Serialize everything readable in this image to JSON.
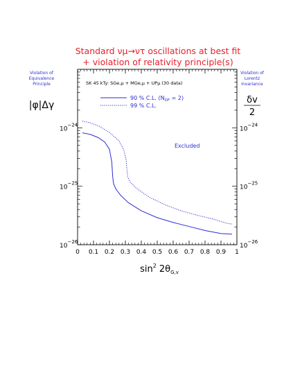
{
  "title": {
    "line1": "Standard νμ→ντ oscillations at best fit",
    "line2": "+ violation of relativity principle(s)"
  },
  "side_notes": {
    "left": [
      "Violation of",
      "Equivalence",
      "Principle"
    ],
    "right": [
      "Violation of",
      "Lorentz",
      "Invariance"
    ]
  },
  "left_symbol": "|φ|Δγ",
  "right_symbol": {
    "numerator": "δv",
    "denominator": "2"
  },
  "annotation": "SK 45 kTy:  SGe,μ + MGe,μ + UPμ  (30 data)",
  "region_label": "Excluded",
  "colors": {
    "curve": "#2b2bd4",
    "title": "#e8202a",
    "notes": "#2b2bd4"
  },
  "chart_data": {
    "type": "line",
    "title": "Standard νμ→ντ oscillations at best fit + violation of relativity principle(s)",
    "xlabel": "sin² 2θG,v",
    "ylabel": "|φ|Δγ",
    "ylabel_right": "δv/2",
    "xlim": [
      0,
      1
    ],
    "ylim": [
      1e-26,
      1e-23
    ],
    "yscale": "log",
    "x_ticks": [
      "0",
      "0.1",
      "0.2",
      "0.3",
      "0.4",
      "0.5",
      "0.6",
      "0.7",
      "0.8",
      "0.9",
      "1"
    ],
    "y_ticks": [
      {
        "value": 1e-24,
        "base": "10",
        "exp": "−24"
      },
      {
        "value": 1e-25,
        "base": "10",
        "exp": "−25"
      },
      {
        "value": 1e-26,
        "base": "10",
        "exp": "−26"
      }
    ],
    "grid": false,
    "legend_position": "top-left",
    "series": [
      {
        "name": "90 % C.L. (N_DF = 2)",
        "legend_main": "90 % C.L.  (N",
        "legend_sub": "DF",
        "legend_tail": " = 2)",
        "style": "solid",
        "x": [
          0.03,
          0.08,
          0.13,
          0.17,
          0.2,
          0.215,
          0.22,
          0.225,
          0.24,
          0.27,
          0.32,
          0.4,
          0.5,
          0.6,
          0.7,
          0.8,
          0.9,
          0.97
        ],
        "y": [
          8.2e-25,
          7.7e-25,
          6.8e-25,
          5.7e-25,
          4.3e-25,
          2.6e-25,
          1.5e-25,
          1.12e-25,
          9e-26,
          7e-26,
          5.2e-26,
          3.8e-26,
          2.9e-26,
          2.4e-26,
          2.05e-26,
          1.75e-26,
          1.55e-26,
          1.52e-26
        ]
      },
      {
        "name": "99 % C.L.",
        "legend_main": "99 % C.L.",
        "style": "dotted",
        "x": [
          0.03,
          0.08,
          0.14,
          0.2,
          0.26,
          0.29,
          0.305,
          0.31,
          0.315,
          0.33,
          0.37,
          0.45,
          0.55,
          0.65,
          0.75,
          0.85,
          0.93,
          0.97
        ],
        "y": [
          1.3e-24,
          1.22e-24,
          1.05e-24,
          8.3e-25,
          6e-25,
          4.2e-25,
          2.8e-25,
          1.9e-25,
          1.45e-25,
          1.18e-25,
          9.2e-26,
          6.5e-26,
          4.8e-26,
          3.8e-26,
          3.2e-26,
          2.75e-26,
          2.35e-26,
          2.25e-26
        ]
      }
    ]
  }
}
